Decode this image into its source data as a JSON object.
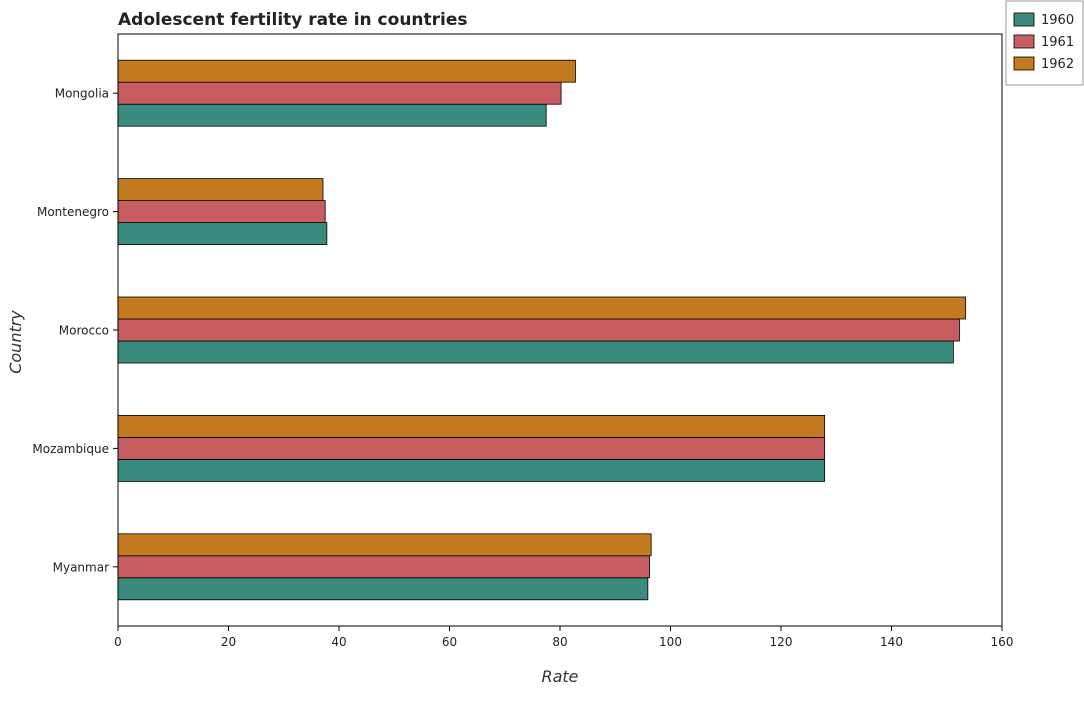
{
  "chart_data": {
    "type": "bar",
    "orientation": "horizontal",
    "title": "Adolescent fertility rate in countries",
    "xlabel": "Rate",
    "ylabel": "Country",
    "categories": [
      "Mongolia",
      "Montenegro",
      "Morocco",
      "Mozambique",
      "Myanmar"
    ],
    "series": [
      {
        "name": "1960",
        "color": "#3a8c80",
        "values": [
          77.5,
          37.8,
          151.2,
          127.9,
          95.9
        ]
      },
      {
        "name": "1961",
        "color": "#c75c61",
        "values": [
          80.2,
          37.5,
          152.3,
          127.9,
          96.2
        ]
      },
      {
        "name": "1962",
        "color": "#c47a1f",
        "values": [
          82.8,
          37.1,
          153.4,
          127.9,
          96.5
        ]
      }
    ],
    "xlim": [
      0,
      160
    ],
    "xticks": [
      0,
      20,
      40,
      60,
      80,
      100,
      120,
      140,
      160
    ],
    "grid": false,
    "legend_position": "top-right",
    "bar_edge_color": "#000000"
  }
}
